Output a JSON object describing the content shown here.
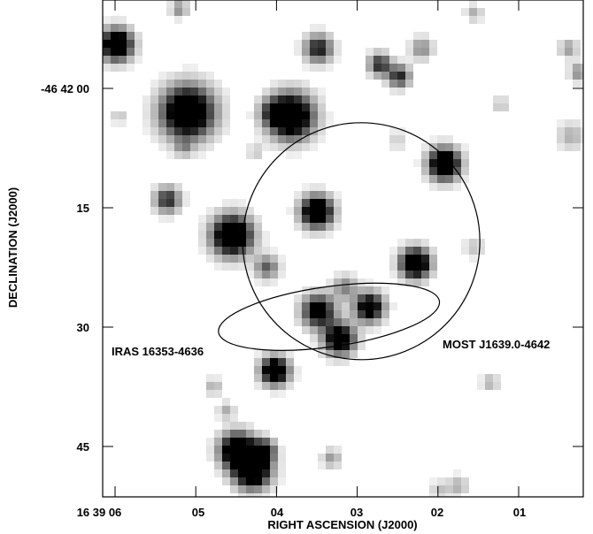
{
  "chart_data": {
    "type": "image",
    "xlabel": "RIGHT ASCENSION (J2000)",
    "ylabel": "DECLINATION (J2000)",
    "x_axis": {
      "unit": "seconds of RA offset from 16 39 00",
      "range": [
        6.2,
        0.1
      ],
      "ticks": [
        {
          "value": 6,
          "label": "16 39 06"
        },
        {
          "value": 5,
          "label": "05"
        },
        {
          "value": 4,
          "label": "04"
        },
        {
          "value": 3,
          "label": "03"
        },
        {
          "value": 2,
          "label": "02"
        },
        {
          "value": 1,
          "label": "01"
        }
      ]
    },
    "y_axis": {
      "unit": "arcseconds of Dec below -46 42 00",
      "range": [
        -10.5,
        50.5
      ],
      "ticks": [
        {
          "value": 0,
          "label": "-46 42 00"
        },
        {
          "value": 15,
          "label": "15"
        },
        {
          "value": 30,
          "label": "30"
        },
        {
          "value": 45,
          "label": "45"
        }
      ]
    },
    "annotations": [
      {
        "id": "iras",
        "label": "IRAS 16353-4636"
      },
      {
        "id": "most",
        "label": "MOST J1639.0-4642"
      }
    ],
    "sources": [
      {
        "ra": 5.98,
        "dec": -5.5,
        "r": 1.8,
        "s": 1.0
      },
      {
        "ra": 5.1,
        "dec": 3.0,
        "r": 3.0,
        "s": 1.0
      },
      {
        "ra": 3.82,
        "dec": 3.5,
        "r": 2.6,
        "s": 1.0
      },
      {
        "ra": 4.55,
        "dec": 18.5,
        "r": 2.3,
        "s": 1.0
      },
      {
        "ra": 3.5,
        "dec": 15.5,
        "r": 1.8,
        "s": 1.0
      },
      {
        "ra": 1.92,
        "dec": 9.5,
        "r": 1.8,
        "s": 1.0
      },
      {
        "ra": 2.28,
        "dec": 22.0,
        "r": 1.7,
        "s": 1.0
      },
      {
        "ra": 4.02,
        "dec": 35.5,
        "r": 1.6,
        "s": 0.95
      },
      {
        "ra": 3.48,
        "dec": 28.0,
        "r": 1.9,
        "s": 0.75
      },
      {
        "ra": 2.85,
        "dec": 27.5,
        "r": 1.7,
        "s": 0.8
      },
      {
        "ra": 3.22,
        "dec": 31.5,
        "r": 1.8,
        "s": 0.85
      },
      {
        "ra": 3.15,
        "dec": 25.0,
        "r": 1.4,
        "s": 0.3
      },
      {
        "ra": 4.48,
        "dec": 45.5,
        "r": 2.0,
        "s": 1.0
      },
      {
        "ra": 4.3,
        "dec": 48.0,
        "r": 2.1,
        "s": 1.0
      },
      {
        "ra": 4.15,
        "dec": 45.5,
        "r": 1.3,
        "s": 0.6
      },
      {
        "ra": 3.48,
        "dec": -5.0,
        "r": 1.6,
        "s": 0.6
      },
      {
        "ra": 2.72,
        "dec": -3.0,
        "r": 1.3,
        "s": 0.55
      },
      {
        "ra": 2.48,
        "dec": -1.5,
        "r": 1.3,
        "s": 0.55
      },
      {
        "ra": 2.2,
        "dec": -5.0,
        "r": 1.3,
        "s": 0.3
      },
      {
        "ra": 5.35,
        "dec": 14.0,
        "r": 1.5,
        "s": 0.55
      },
      {
        "ra": 4.04,
        "dec": 3.0,
        "r": 1.5,
        "s": 0.35
      },
      {
        "ra": 4.12,
        "dec": 22.5,
        "r": 1.4,
        "s": 0.4
      },
      {
        "ra": -0.35,
        "dec": 24.5,
        "r": 1.5,
        "s": 0.7
      },
      {
        "ra": 0.38,
        "dec": -5.0,
        "r": 1.1,
        "s": 0.25
      },
      {
        "ra": 0.25,
        "dec": -2.0,
        "r": 1.1,
        "s": 0.3
      },
      {
        "ra": 0.35,
        "dec": 6.0,
        "r": 1.6,
        "s": 0.2
      },
      {
        "ra": 1.55,
        "dec": 20.0,
        "r": 1.2,
        "s": 0.15
      },
      {
        "ra": 5.2,
        "dec": -10.0,
        "r": 1.0,
        "s": 0.3
      },
      {
        "ra": 5.95,
        "dec": 3.5,
        "r": 0.9,
        "s": 0.15
      },
      {
        "ra": 5.15,
        "dec": 7.5,
        "r": 1.0,
        "s": 0.2
      },
      {
        "ra": 4.26,
        "dec": 8.0,
        "r": 0.9,
        "s": 0.15
      },
      {
        "ra": 4.78,
        "dec": 37.5,
        "r": 1.0,
        "s": 0.2
      },
      {
        "ra": 2.5,
        "dec": 6.5,
        "r": 1.2,
        "s": 0.12
      },
      {
        "ra": 3.32,
        "dec": 46.5,
        "r": 1.1,
        "s": 0.25
      },
      {
        "ra": 1.75,
        "dec": 50.0,
        "r": 1.2,
        "s": 0.2
      },
      {
        "ra": 1.98,
        "dec": 50.5,
        "r": 1.1,
        "s": 0.15
      },
      {
        "ra": 1.35,
        "dec": 37.0,
        "r": 1.0,
        "s": 0.2
      },
      {
        "ra": 1.55,
        "dec": -9.5,
        "r": 1.0,
        "s": 0.2
      },
      {
        "ra": 1.22,
        "dec": 2.0,
        "r": 0.8,
        "s": 0.2
      },
      {
        "ra": 4.62,
        "dec": 40.5,
        "r": 1.0,
        "s": 0.2
      }
    ]
  }
}
